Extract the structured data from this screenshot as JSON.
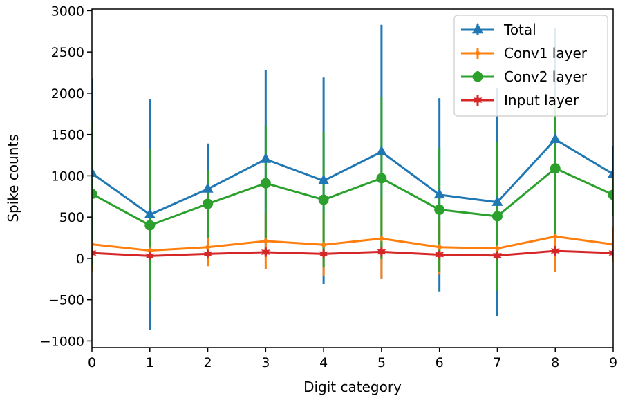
{
  "chart_data": {
    "type": "line",
    "title": "",
    "xlabel": "Digit category",
    "ylabel": "Spike counts",
    "xlim": [
      0,
      9
    ],
    "ylim": [
      -1080,
      3020
    ],
    "x": [
      0,
      1,
      2,
      3,
      4,
      5,
      6,
      7,
      8,
      9
    ],
    "x_ticks": [
      "0",
      "1",
      "2",
      "3",
      "4",
      "5",
      "6",
      "7",
      "8",
      "9"
    ],
    "y_ticks": [
      -1000,
      -500,
      0,
      500,
      1000,
      1500,
      2000,
      2500,
      3000
    ],
    "y_tick_labels": [
      "−1000",
      "−500",
      "0",
      "500",
      "1000",
      "1500",
      "2000",
      "2500",
      "3000"
    ],
    "grid": false,
    "legend_position": "top-right",
    "series": [
      {
        "name": "Total",
        "color": "#1f77b4",
        "marker": "triangle",
        "values": [
          1030,
          530,
          840,
          1200,
          940,
          1290,
          770,
          680,
          1440,
          1020
        ],
        "error": [
          1150,
          1400,
          550,
          1080,
          1250,
          1540,
          1170,
          1380,
          1350,
          340
        ]
      },
      {
        "name": "Conv1 layer",
        "color": "#ff7f0e",
        "marker": "diamond",
        "values": [
          170,
          95,
          135,
          210,
          165,
          240,
          135,
          120,
          265,
          170
        ],
        "error": [
          330,
          200,
          230,
          340,
          380,
          490,
          330,
          260,
          430,
          210
        ]
      },
      {
        "name": "Conv2 layer",
        "color": "#2ca02c",
        "marker": "circle",
        "values": [
          780,
          400,
          660,
          910,
          710,
          970,
          590,
          510,
          1090,
          770
        ],
        "error": [
          870,
          920,
          410,
          700,
          820,
          980,
          750,
          900,
          820,
          250
        ]
      },
      {
        "name": "Input layer",
        "color": "#d62728",
        "marker": "star",
        "values": [
          65,
          30,
          55,
          75,
          55,
          80,
          45,
          35,
          90,
          65
        ],
        "error": [
          50,
          40,
          40,
          55,
          50,
          60,
          45,
          40,
          60,
          40
        ]
      }
    ]
  }
}
